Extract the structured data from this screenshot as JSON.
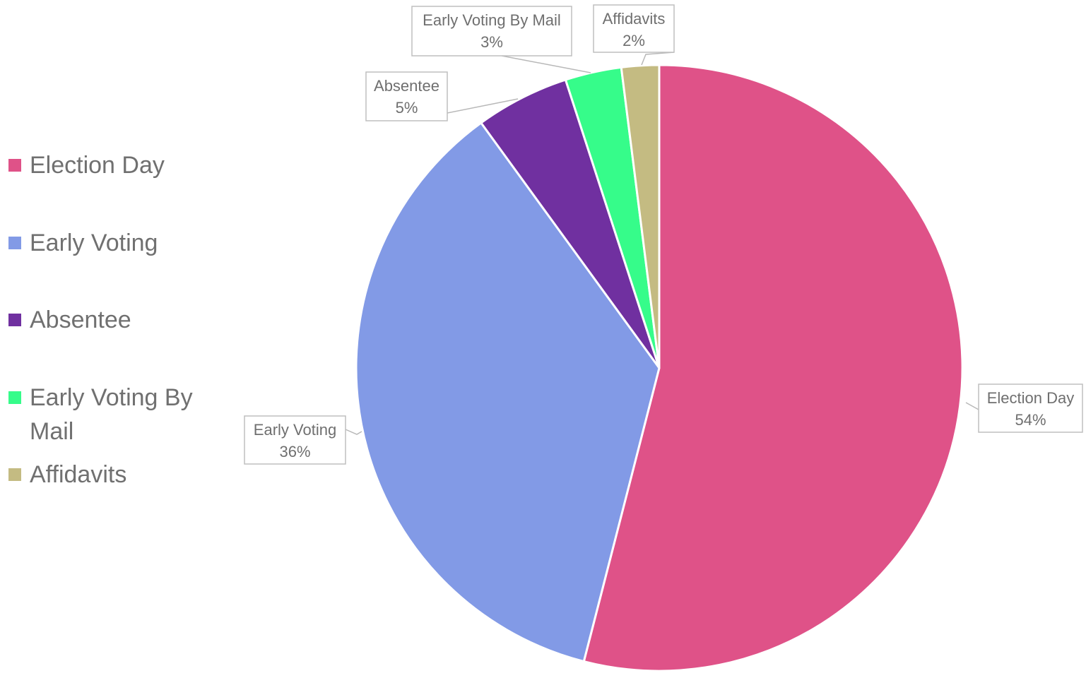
{
  "chart_data": {
    "type": "pie",
    "title": "",
    "start_angle_deg": 0,
    "direction": "clockwise",
    "legend_position": "left",
    "slices": [
      {
        "label": "Election Day",
        "value": 54,
        "color": "#DF5288"
      },
      {
        "label": "Early Voting",
        "value": 36,
        "color": "#829AE6"
      },
      {
        "label": "Absentee",
        "value": 5,
        "color": "#7030A0"
      },
      {
        "label": "Early Voting By Mail",
        "value": 3,
        "color": "#36FC8A"
      },
      {
        "label": "Affidavits",
        "value": 2,
        "color": "#C4BB82"
      }
    ],
    "data_labels": [
      {
        "name": "Election Day",
        "text": "54%"
      },
      {
        "name": "Early Voting",
        "text": "36%"
      },
      {
        "name": "Absentee",
        "text": "5%"
      },
      {
        "name": "Early Voting By Mail",
        "text": "3%"
      },
      {
        "name": "Affidavits",
        "text": "2%"
      }
    ]
  }
}
